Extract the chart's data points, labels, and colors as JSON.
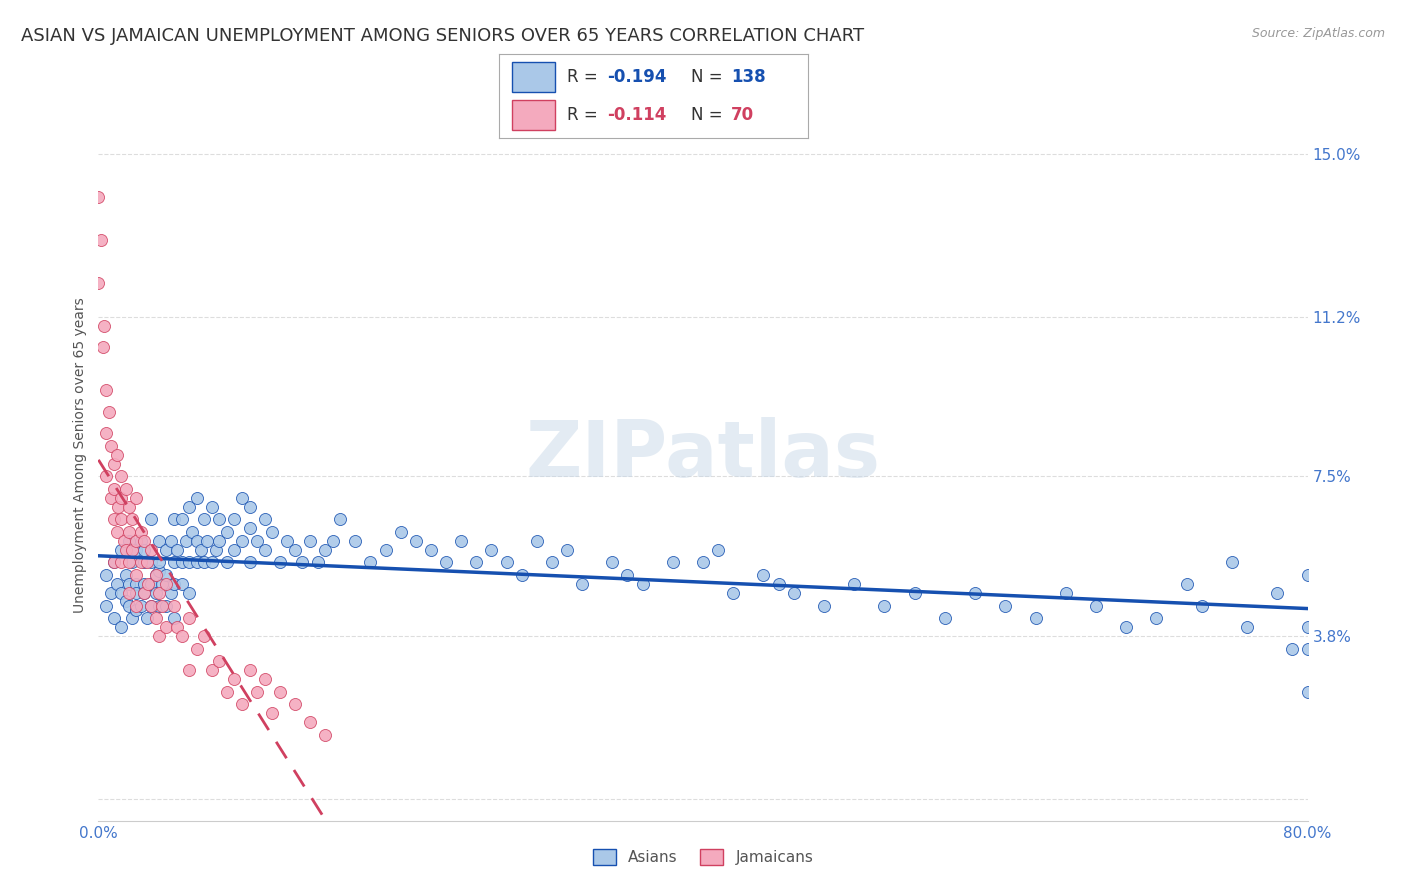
{
  "title": "ASIAN VS JAMAICAN UNEMPLOYMENT AMONG SENIORS OVER 65 YEARS CORRELATION CHART",
  "source": "Source: ZipAtlas.com",
  "ylabel": "Unemployment Among Seniors over 65 years",
  "xlim": [
    0.0,
    0.8
  ],
  "ylim": [
    -0.005,
    0.165
  ],
  "yticks": [
    0.0,
    0.038,
    0.075,
    0.112,
    0.15
  ],
  "ytick_labels": [
    "",
    "3.8%",
    "7.5%",
    "11.2%",
    "15.0%"
  ],
  "xticks": [
    0.0,
    0.2,
    0.4,
    0.6,
    0.8
  ],
  "xtick_labels": [
    "0.0%",
    "",
    "",
    "",
    "80.0%"
  ],
  "watermark": "ZIPatlas",
  "asian_color": "#aac8e8",
  "jamaican_color": "#f4aabe",
  "asian_line_color": "#1650b0",
  "jamaican_line_color": "#d04060",
  "title_color": "#333333",
  "axis_color": "#4477cc",
  "background_color": "#ffffff",
  "grid_color": "#dddddd",
  "asian_x": [
    0.005,
    0.005,
    0.008,
    0.01,
    0.01,
    0.012,
    0.015,
    0.015,
    0.015,
    0.018,
    0.018,
    0.02,
    0.02,
    0.02,
    0.022,
    0.022,
    0.025,
    0.025,
    0.025,
    0.025,
    0.028,
    0.028,
    0.03,
    0.03,
    0.03,
    0.03,
    0.032,
    0.035,
    0.035,
    0.035,
    0.035,
    0.038,
    0.038,
    0.04,
    0.04,
    0.04,
    0.04,
    0.042,
    0.045,
    0.045,
    0.045,
    0.048,
    0.048,
    0.05,
    0.05,
    0.05,
    0.05,
    0.052,
    0.055,
    0.055,
    0.055,
    0.058,
    0.06,
    0.06,
    0.06,
    0.062,
    0.065,
    0.065,
    0.065,
    0.068,
    0.07,
    0.07,
    0.072,
    0.075,
    0.075,
    0.078,
    0.08,
    0.08,
    0.085,
    0.085,
    0.09,
    0.09,
    0.095,
    0.095,
    0.1,
    0.1,
    0.1,
    0.105,
    0.11,
    0.11,
    0.115,
    0.12,
    0.125,
    0.13,
    0.135,
    0.14,
    0.145,
    0.15,
    0.155,
    0.16,
    0.17,
    0.18,
    0.19,
    0.2,
    0.21,
    0.22,
    0.23,
    0.24,
    0.25,
    0.26,
    0.27,
    0.28,
    0.29,
    0.3,
    0.31,
    0.32,
    0.34,
    0.35,
    0.36,
    0.38,
    0.4,
    0.41,
    0.42,
    0.44,
    0.45,
    0.46,
    0.48,
    0.5,
    0.52,
    0.54,
    0.56,
    0.58,
    0.6,
    0.62,
    0.64,
    0.66,
    0.68,
    0.7,
    0.72,
    0.73,
    0.75,
    0.76,
    0.78,
    0.79,
    0.8,
    0.8,
    0.8,
    0.8
  ],
  "asian_y": [
    0.052,
    0.045,
    0.048,
    0.055,
    0.042,
    0.05,
    0.058,
    0.048,
    0.04,
    0.052,
    0.046,
    0.06,
    0.045,
    0.05,
    0.055,
    0.042,
    0.05,
    0.058,
    0.044,
    0.048,
    0.06,
    0.045,
    0.055,
    0.05,
    0.048,
    0.058,
    0.042,
    0.065,
    0.05,
    0.045,
    0.055,
    0.052,
    0.048,
    0.06,
    0.053,
    0.045,
    0.055,
    0.05,
    0.058,
    0.045,
    0.052,
    0.06,
    0.048,
    0.055,
    0.05,
    0.065,
    0.042,
    0.058,
    0.065,
    0.05,
    0.055,
    0.06,
    0.068,
    0.055,
    0.048,
    0.062,
    0.06,
    0.055,
    0.07,
    0.058,
    0.065,
    0.055,
    0.06,
    0.068,
    0.055,
    0.058,
    0.065,
    0.06,
    0.062,
    0.055,
    0.065,
    0.058,
    0.07,
    0.06,
    0.063,
    0.055,
    0.068,
    0.06,
    0.065,
    0.058,
    0.062,
    0.055,
    0.06,
    0.058,
    0.055,
    0.06,
    0.055,
    0.058,
    0.06,
    0.065,
    0.06,
    0.055,
    0.058,
    0.062,
    0.06,
    0.058,
    0.055,
    0.06,
    0.055,
    0.058,
    0.055,
    0.052,
    0.06,
    0.055,
    0.058,
    0.05,
    0.055,
    0.052,
    0.05,
    0.055,
    0.055,
    0.058,
    0.048,
    0.052,
    0.05,
    0.048,
    0.045,
    0.05,
    0.045,
    0.048,
    0.042,
    0.048,
    0.045,
    0.042,
    0.048,
    0.045,
    0.04,
    0.042,
    0.05,
    0.045,
    0.055,
    0.04,
    0.048,
    0.035,
    0.052,
    0.04,
    0.035,
    0.025
  ],
  "jamaican_x": [
    0.0,
    0.0,
    0.002,
    0.003,
    0.004,
    0.005,
    0.005,
    0.005,
    0.007,
    0.008,
    0.008,
    0.01,
    0.01,
    0.01,
    0.01,
    0.012,
    0.012,
    0.013,
    0.015,
    0.015,
    0.015,
    0.015,
    0.017,
    0.018,
    0.018,
    0.02,
    0.02,
    0.02,
    0.02,
    0.022,
    0.022,
    0.025,
    0.025,
    0.025,
    0.025,
    0.028,
    0.028,
    0.03,
    0.03,
    0.032,
    0.033,
    0.035,
    0.035,
    0.038,
    0.038,
    0.04,
    0.04,
    0.042,
    0.045,
    0.045,
    0.05,
    0.052,
    0.055,
    0.06,
    0.06,
    0.065,
    0.07,
    0.075,
    0.08,
    0.085,
    0.09,
    0.095,
    0.1,
    0.105,
    0.11,
    0.115,
    0.12,
    0.13,
    0.14,
    0.15
  ],
  "jamaican_y": [
    0.14,
    0.12,
    0.13,
    0.105,
    0.11,
    0.095,
    0.085,
    0.075,
    0.09,
    0.082,
    0.07,
    0.078,
    0.065,
    0.072,
    0.055,
    0.08,
    0.062,
    0.068,
    0.075,
    0.065,
    0.055,
    0.07,
    0.06,
    0.072,
    0.058,
    0.068,
    0.055,
    0.062,
    0.048,
    0.065,
    0.058,
    0.07,
    0.06,
    0.052,
    0.045,
    0.062,
    0.055,
    0.06,
    0.048,
    0.055,
    0.05,
    0.058,
    0.045,
    0.052,
    0.042,
    0.048,
    0.038,
    0.045,
    0.05,
    0.04,
    0.045,
    0.04,
    0.038,
    0.042,
    0.03,
    0.035,
    0.038,
    0.03,
    0.032,
    0.025,
    0.028,
    0.022,
    0.03,
    0.025,
    0.028,
    0.02,
    0.025,
    0.022,
    0.018,
    0.015
  ],
  "title_fontsize": 13,
  "label_fontsize": 10,
  "tick_fontsize": 11,
  "legend_fontsize": 12
}
